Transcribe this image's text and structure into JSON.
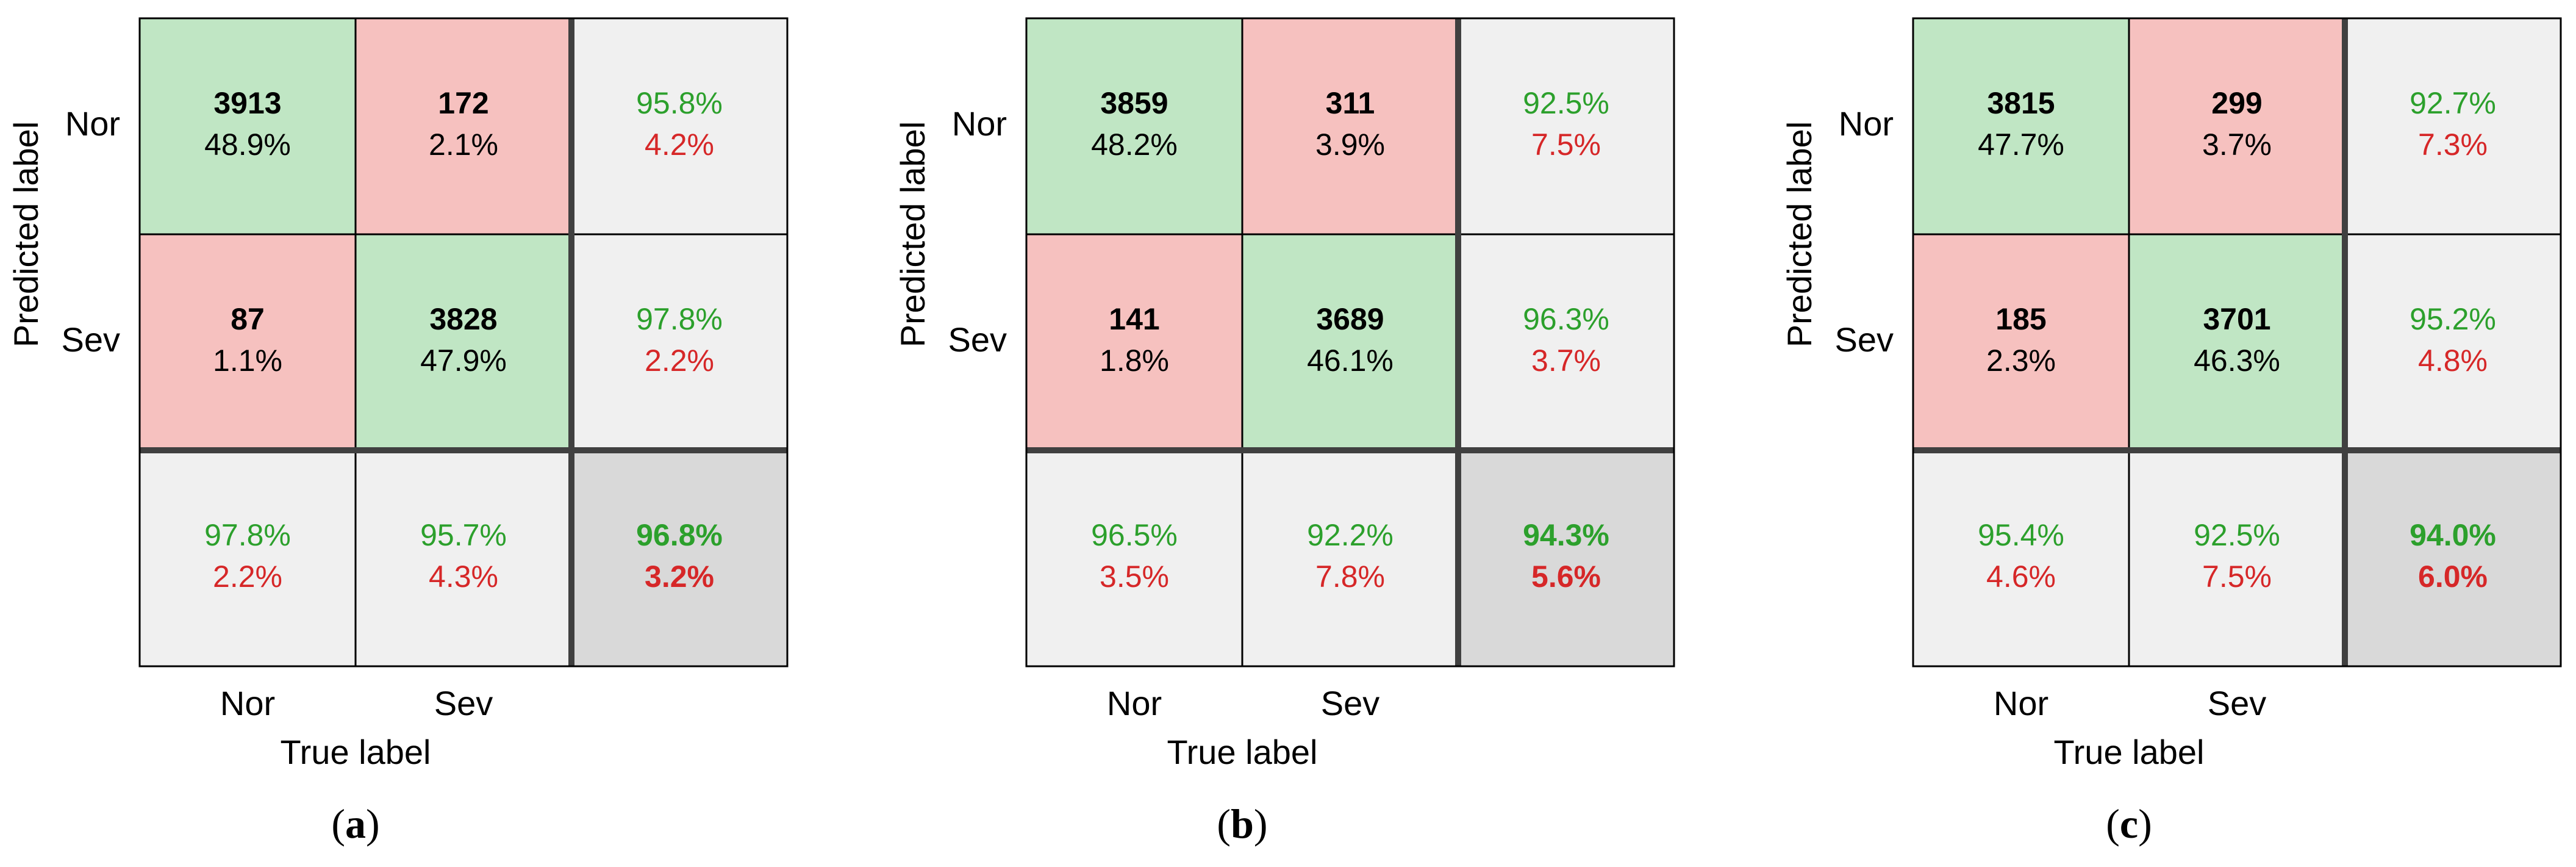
{
  "colors": {
    "correct_fill": "#c0e6c4",
    "wrong_fill": "#f6c1bf",
    "summary_fill": "#f0f0f0",
    "total_fill": "#d9d9d9",
    "grid": "#000000",
    "divider": "#404040",
    "good_text": "#2ca02c",
    "bad_text": "#d62728",
    "text": "#000000"
  },
  "chart_data": [
    {
      "type": "heatmap",
      "subtype": "confusion-matrix",
      "panel_label": "a",
      "xlabel": "True label",
      "ylabel": "Predicted label",
      "class_labels": [
        "Nor",
        "Sev"
      ],
      "cells": [
        [
          {
            "count": "3913",
            "pct": "48.9%"
          },
          {
            "count": "172",
            "pct": "2.1%"
          }
        ],
        [
          {
            "count": "87",
            "pct": "1.1%"
          },
          {
            "count": "3828",
            "pct": "47.9%"
          }
        ]
      ],
      "row_summary": [
        {
          "good": "95.8%",
          "bad": "4.2%"
        },
        {
          "good": "97.8%",
          "bad": "2.2%"
        }
      ],
      "col_summary": [
        {
          "good": "97.8%",
          "bad": "2.2%"
        },
        {
          "good": "95.7%",
          "bad": "4.3%"
        }
      ],
      "overall": {
        "good": "96.8%",
        "bad": "3.2%"
      }
    },
    {
      "type": "heatmap",
      "subtype": "confusion-matrix",
      "panel_label": "b",
      "xlabel": "True label",
      "ylabel": "Predicted label",
      "class_labels": [
        "Nor",
        "Sev"
      ],
      "cells": [
        [
          {
            "count": "3859",
            "pct": "48.2%"
          },
          {
            "count": "311",
            "pct": "3.9%"
          }
        ],
        [
          {
            "count": "141",
            "pct": "1.8%"
          },
          {
            "count": "3689",
            "pct": "46.1%"
          }
        ]
      ],
      "row_summary": [
        {
          "good": "92.5%",
          "bad": "7.5%"
        },
        {
          "good": "96.3%",
          "bad": "3.7%"
        }
      ],
      "col_summary": [
        {
          "good": "96.5%",
          "bad": "3.5%"
        },
        {
          "good": "92.2%",
          "bad": "7.8%"
        }
      ],
      "overall": {
        "good": "94.3%",
        "bad": "5.6%"
      }
    },
    {
      "type": "heatmap",
      "subtype": "confusion-matrix",
      "panel_label": "c",
      "xlabel": "True label",
      "ylabel": "Predicted label",
      "class_labels": [
        "Nor",
        "Sev"
      ],
      "cells": [
        [
          {
            "count": "3815",
            "pct": "47.7%"
          },
          {
            "count": "299",
            "pct": "3.7%"
          }
        ],
        [
          {
            "count": "185",
            "pct": "2.3%"
          },
          {
            "count": "3701",
            "pct": "46.3%"
          }
        ]
      ],
      "row_summary": [
        {
          "good": "92.7%",
          "bad": "7.3%"
        },
        {
          "good": "95.2%",
          "bad": "4.8%"
        }
      ],
      "col_summary": [
        {
          "good": "95.4%",
          "bad": "4.6%"
        },
        {
          "good": "92.5%",
          "bad": "7.5%"
        }
      ],
      "overall": {
        "good": "94.0%",
        "bad": "6.0%"
      }
    }
  ]
}
